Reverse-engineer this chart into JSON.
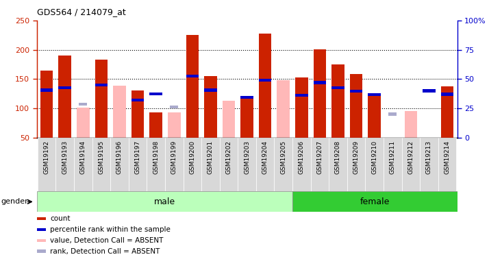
{
  "title": "GDS564 / 214079_at",
  "samples": [
    "GSM19192",
    "GSM19193",
    "GSM19194",
    "GSM19195",
    "GSM19196",
    "GSM19197",
    "GSM19198",
    "GSM19199",
    "GSM19200",
    "GSM19201",
    "GSM19202",
    "GSM19203",
    "GSM19204",
    "GSM19205",
    "GSM19206",
    "GSM19207",
    "GSM19208",
    "GSM19209",
    "GSM19210",
    "GSM19211",
    "GSM19212",
    "GSM19213",
    "GSM19214"
  ],
  "red_values": [
    165,
    190,
    null,
    183,
    null,
    130,
    93,
    null,
    225,
    155,
    null,
    120,
    228,
    null,
    153,
    201,
    175,
    158,
    124,
    null,
    null,
    null,
    137
  ],
  "pink_values": [
    null,
    null,
    101,
    null,
    139,
    null,
    null,
    93,
    null,
    null,
    113,
    null,
    null,
    148,
    null,
    null,
    null,
    null,
    null,
    49,
    95,
    null,
    null
  ],
  "blue_values": [
    131,
    135,
    null,
    140,
    null,
    114,
    125,
    null,
    155,
    131,
    null,
    119,
    148,
    null,
    122,
    144,
    135,
    129,
    123,
    null,
    null,
    130,
    124
  ],
  "light_blue_values": [
    null,
    null,
    107,
    null,
    null,
    null,
    null,
    102,
    null,
    null,
    null,
    null,
    null,
    null,
    null,
    null,
    null,
    null,
    null,
    90,
    null,
    null,
    null
  ],
  "gender": [
    "male",
    "male",
    "male",
    "male",
    "male",
    "male",
    "male",
    "male",
    "male",
    "male",
    "male",
    "male",
    "male",
    "male",
    "female",
    "female",
    "female",
    "female",
    "female",
    "female",
    "female",
    "female",
    "female"
  ],
  "male_count": 14,
  "y_min": 50,
  "y_max": 250,
  "y_ticks_left": [
    50,
    100,
    150,
    200,
    250
  ],
  "y_ticks_right": [
    0,
    25,
    50,
    75,
    100
  ],
  "bar_color_red": "#cc2200",
  "bar_color_pink": "#ffb8b8",
  "bar_color_blue": "#0000cc",
  "bar_color_light_blue": "#aaaacc",
  "male_bg": "#bbffbb",
  "female_bg": "#33cc33",
  "bg_gray": "#d8d8d8",
  "legend_items": [
    "count",
    "percentile rank within the sample",
    "value, Detection Call = ABSENT",
    "rank, Detection Call = ABSENT"
  ],
  "legend_colors": [
    "#cc2200",
    "#0000cc",
    "#ffb8b8",
    "#aaaacc"
  ]
}
